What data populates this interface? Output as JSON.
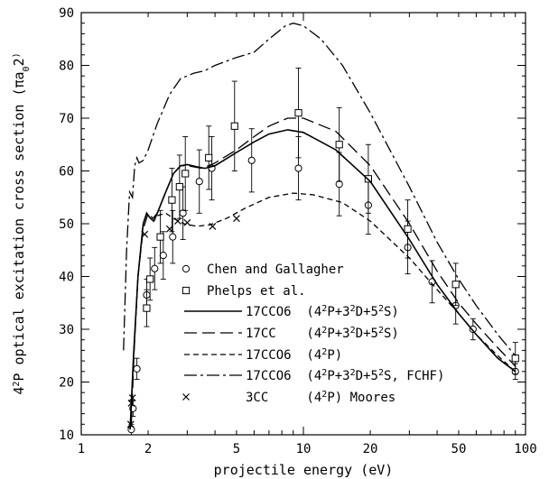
{
  "chart_data": {
    "type": "line",
    "x_axis": {
      "label": "projectile energy (eV)",
      "scale": "log",
      "range": [
        1,
        100
      ],
      "ticks": [
        1,
        2,
        5,
        10,
        20,
        50,
        100
      ],
      "tick_labels": [
        "1",
        "2",
        "5",
        "10",
        "20",
        "50",
        "100"
      ]
    },
    "y_axis": {
      "label_parts": [
        "4",
        "2",
        "P optical excitation cross section (πa",
        "0",
        "2",
        ")"
      ],
      "range": [
        10,
        90
      ],
      "ticks": [
        10,
        20,
        30,
        40,
        50,
        60,
        70,
        80,
        90
      ],
      "tick_labels": [
        "10",
        "20",
        "30",
        "40",
        "50",
        "60",
        "70",
        "80",
        "90"
      ]
    },
    "series": [
      {
        "name": "Chen and Gallagher",
        "legend_parts": [
          "Chen and Gallagher"
        ],
        "style": "marker-circle",
        "points": [
          {
            "x": 1.68,
            "y": 11,
            "err": 1
          },
          {
            "x": 1.71,
            "y": 15,
            "err": 1.5
          },
          {
            "x": 1.78,
            "y": 22.5,
            "err": 2
          },
          {
            "x": 1.97,
            "y": 36.5,
            "err": 3
          },
          {
            "x": 2.14,
            "y": 41.5,
            "err": 4
          },
          {
            "x": 2.34,
            "y": 44,
            "err": 4.5
          },
          {
            "x": 2.58,
            "y": 47.5,
            "err": 5
          },
          {
            "x": 2.87,
            "y": 52,
            "err": 5
          },
          {
            "x": 3.4,
            "y": 58,
            "err": 6
          },
          {
            "x": 3.87,
            "y": 60.5,
            "err": 6
          },
          {
            "x": 5.85,
            "y": 62,
            "err": 6
          },
          {
            "x": 9.5,
            "y": 60.5,
            "err": 6
          },
          {
            "x": 14.5,
            "y": 57.5,
            "err": 6
          },
          {
            "x": 19.6,
            "y": 53.5,
            "err": 5.5
          },
          {
            "x": 29.5,
            "y": 45.5,
            "err": 5
          },
          {
            "x": 38,
            "y": 39,
            "err": 4
          },
          {
            "x": 48.5,
            "y": 34.5,
            "err": 3.5
          },
          {
            "x": 58,
            "y": 30,
            "err": 2
          },
          {
            "x": 90,
            "y": 22,
            "err": 1.5
          }
        ]
      },
      {
        "name": "Phelps et al.",
        "legend_parts": [
          "Phelps et al."
        ],
        "style": "marker-square",
        "points": [
          {
            "x": 1.97,
            "y": 34,
            "err": 3.5
          },
          {
            "x": 2.04,
            "y": 39.5,
            "err": 4
          },
          {
            "x": 2.27,
            "y": 47.5,
            "err": 5
          },
          {
            "x": 2.56,
            "y": 54.5,
            "err": 6
          },
          {
            "x": 2.77,
            "y": 57,
            "err": 6
          },
          {
            "x": 2.94,
            "y": 59.5,
            "err": 7
          },
          {
            "x": 3.75,
            "y": 62.5,
            "err": 6
          },
          {
            "x": 4.9,
            "y": 68.5,
            "err": 8.5
          },
          {
            "x": 9.5,
            "y": 71,
            "err": 8.5
          },
          {
            "x": 14.5,
            "y": 65,
            "err": 7
          },
          {
            "x": 19.6,
            "y": 58.5,
            "err": 6.5
          },
          {
            "x": 29.5,
            "y": 49,
            "err": 5.5
          },
          {
            "x": 48.5,
            "y": 38.5,
            "err": 4
          },
          {
            "x": 90,
            "y": 24.5,
            "err": 3
          }
        ]
      },
      {
        "name": "17CCO6 (4²P+3²D+5²S)",
        "legend_parts": [
          "17CCO6  (4",
          "2",
          "P+3",
          "2",
          "D+5",
          "2",
          "S)"
        ],
        "style": "solid",
        "points": [
          {
            "x": 1.66,
            "y": 11
          },
          {
            "x": 1.72,
            "y": 25
          },
          {
            "x": 1.8,
            "y": 40
          },
          {
            "x": 1.9,
            "y": 50
          },
          {
            "x": 1.97,
            "y": 52
          },
          {
            "x": 2.05,
            "y": 51
          },
          {
            "x": 2.12,
            "y": 50.5
          },
          {
            "x": 2.2,
            "y": 52
          },
          {
            "x": 2.4,
            "y": 56
          },
          {
            "x": 2.6,
            "y": 59.5
          },
          {
            "x": 2.8,
            "y": 61
          },
          {
            "x": 3.0,
            "y": 61.2
          },
          {
            "x": 3.3,
            "y": 60.8
          },
          {
            "x": 3.6,
            "y": 60.5
          },
          {
            "x": 4.0,
            "y": 61
          },
          {
            "x": 5.0,
            "y": 63.5
          },
          {
            "x": 6.0,
            "y": 65.5
          },
          {
            "x": 7.0,
            "y": 67
          },
          {
            "x": 8.5,
            "y": 67.8
          },
          {
            "x": 10,
            "y": 67.3
          },
          {
            "x": 14,
            "y": 64
          },
          {
            "x": 20,
            "y": 58
          },
          {
            "x": 30,
            "y": 47
          },
          {
            "x": 40,
            "y": 38.5
          },
          {
            "x": 50,
            "y": 33
          },
          {
            "x": 60,
            "y": 29
          },
          {
            "x": 75,
            "y": 24.5
          },
          {
            "x": 90,
            "y": 22
          }
        ]
      },
      {
        "name": "17CC (4²P+3²D+5²S)",
        "legend_parts": [
          "17CC    (4",
          "2",
          "P+3",
          "2",
          "D+5",
          "2",
          "S)"
        ],
        "style": "long-dash",
        "points": [
          {
            "x": 1.68,
            "y": 12
          },
          {
            "x": 1.73,
            "y": 26
          },
          {
            "x": 1.8,
            "y": 40
          },
          {
            "x": 1.9,
            "y": 49
          },
          {
            "x": 2.0,
            "y": 52
          },
          {
            "x": 2.1,
            "y": 51
          },
          {
            "x": 2.2,
            "y": 52
          },
          {
            "x": 2.4,
            "y": 56
          },
          {
            "x": 2.6,
            "y": 59.5
          },
          {
            "x": 2.8,
            "y": 61
          },
          {
            "x": 3.0,
            "y": 61
          },
          {
            "x": 3.5,
            "y": 60.5
          },
          {
            "x": 4.0,
            "y": 61.5
          },
          {
            "x": 5.0,
            "y": 64
          },
          {
            "x": 6.0,
            "y": 66.5
          },
          {
            "x": 7.0,
            "y": 68.5
          },
          {
            "x": 8.5,
            "y": 70
          },
          {
            "x": 10,
            "y": 70
          },
          {
            "x": 14,
            "y": 67.5
          },
          {
            "x": 20,
            "y": 61
          },
          {
            "x": 30,
            "y": 50
          },
          {
            "x": 40,
            "y": 41
          },
          {
            "x": 50,
            "y": 35
          },
          {
            "x": 60,
            "y": 31
          },
          {
            "x": 75,
            "y": 26.5
          },
          {
            "x": 90,
            "y": 23
          }
        ]
      },
      {
        "name": "17CCO6 (4²P)",
        "legend_parts": [
          "17CCO6  (4",
          "2",
          "P)"
        ],
        "style": "short-dash",
        "points": [
          {
            "x": 1.66,
            "y": 11
          },
          {
            "x": 1.72,
            "y": 25
          },
          {
            "x": 1.8,
            "y": 40
          },
          {
            "x": 1.9,
            "y": 50
          },
          {
            "x": 1.97,
            "y": 52
          },
          {
            "x": 2.05,
            "y": 51
          },
          {
            "x": 2.12,
            "y": 50.5
          },
          {
            "x": 2.2,
            "y": 51.5
          },
          {
            "x": 2.4,
            "y": 52
          },
          {
            "x": 2.6,
            "y": 51
          },
          {
            "x": 2.9,
            "y": 50
          },
          {
            "x": 3.3,
            "y": 49.5
          },
          {
            "x": 3.8,
            "y": 49.8
          },
          {
            "x": 4.5,
            "y": 51
          },
          {
            "x": 5.5,
            "y": 53
          },
          {
            "x": 7.0,
            "y": 55
          },
          {
            "x": 9.0,
            "y": 55.8
          },
          {
            "x": 11,
            "y": 55.5
          },
          {
            "x": 15,
            "y": 54
          },
          {
            "x": 20,
            "y": 50.5
          },
          {
            "x": 30,
            "y": 43.5
          },
          {
            "x": 40,
            "y": 37.5
          },
          {
            "x": 50,
            "y": 33
          },
          {
            "x": 60,
            "y": 29
          },
          {
            "x": 75,
            "y": 25
          },
          {
            "x": 90,
            "y": 22
          }
        ]
      },
      {
        "name": "17CCO6 (4²P+3²D+5²S, FCHF)",
        "legend_parts": [
          "17CCO6  (4",
          "2",
          "P+3",
          "2",
          "D+5",
          "2",
          "S, FCHF)"
        ],
        "style": "dash-dot",
        "points": [
          {
            "x": 1.55,
            "y": 26
          },
          {
            "x": 1.6,
            "y": 45
          },
          {
            "x": 1.65,
            "y": 56
          },
          {
            "x": 1.7,
            "y": 55
          },
          {
            "x": 1.74,
            "y": 61
          },
          {
            "x": 1.78,
            "y": 62.5
          },
          {
            "x": 1.82,
            "y": 61.5
          },
          {
            "x": 1.9,
            "y": 62
          },
          {
            "x": 2.0,
            "y": 64
          },
          {
            "x": 2.2,
            "y": 69
          },
          {
            "x": 2.5,
            "y": 74.5
          },
          {
            "x": 2.8,
            "y": 77.5
          },
          {
            "x": 3.2,
            "y": 78.5
          },
          {
            "x": 3.6,
            "y": 79
          },
          {
            "x": 4.0,
            "y": 80
          },
          {
            "x": 5.0,
            "y": 81.5
          },
          {
            "x": 6.0,
            "y": 82.5
          },
          {
            "x": 7.0,
            "y": 85
          },
          {
            "x": 8.3,
            "y": 87.5
          },
          {
            "x": 9.0,
            "y": 88
          },
          {
            "x": 10,
            "y": 87.5
          },
          {
            "x": 12,
            "y": 85
          },
          {
            "x": 15,
            "y": 80
          },
          {
            "x": 20,
            "y": 71
          },
          {
            "x": 30,
            "y": 57
          },
          {
            "x": 40,
            "y": 46.5
          },
          {
            "x": 50,
            "y": 39.5
          },
          {
            "x": 60,
            "y": 34.5
          },
          {
            "x": 75,
            "y": 29
          },
          {
            "x": 90,
            "y": 25
          }
        ]
      },
      {
        "name": "3CC (4²P) Moores",
        "legend_parts": [
          "3CC     (4",
          "2",
          "P) Moores"
        ],
        "style": "marker-x",
        "points": [
          {
            "x": 1.67,
            "y": 12
          },
          {
            "x": 1.68,
            "y": 16
          },
          {
            "x": 1.7,
            "y": 17
          },
          {
            "x": 1.93,
            "y": 48
          },
          {
            "x": 2.5,
            "y": 49
          },
          {
            "x": 2.72,
            "y": 50.5
          },
          {
            "x": 3.0,
            "y": 50.2
          },
          {
            "x": 3.9,
            "y": 49.5
          },
          {
            "x": 5.0,
            "y": 51
          }
        ]
      }
    ]
  }
}
